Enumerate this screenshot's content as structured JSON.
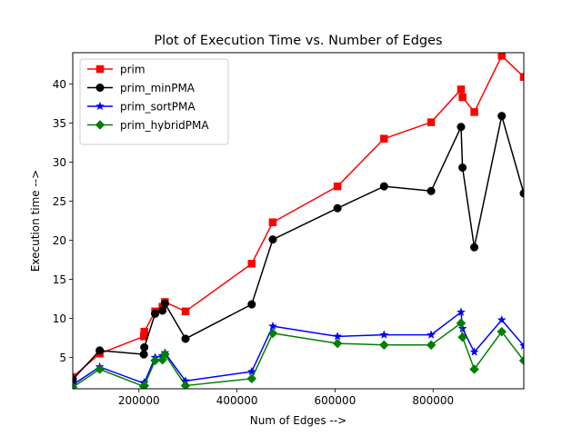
{
  "chart_data": {
    "type": "line",
    "title": "Plot of Execution Time vs. Number of Edges",
    "xlabel": "Num of Edges -->",
    "ylabel": "Execution time -->",
    "xlim": [
      65000,
      985000
    ],
    "ylim": [
      1,
      44
    ],
    "xticks": [
      200000,
      400000,
      600000,
      800000
    ],
    "xtick_labels": [
      "200000",
      "400000",
      "600000",
      "800000"
    ],
    "yticks": [
      5,
      10,
      15,
      20,
      25,
      30,
      35,
      40
    ],
    "ytick_labels": [
      "5",
      "10",
      "15",
      "20",
      "25",
      "30",
      "35",
      "40"
    ],
    "grid": false,
    "legend_position": "top-left",
    "x": [
      65000,
      120000,
      210000,
      211000,
      233000,
      248000,
      253000,
      295000,
      430000,
      473000,
      605000,
      700000,
      796000,
      857000,
      860000,
      884000,
      940000,
      985000
    ],
    "series": [
      {
        "name": "prim",
        "color": "#ff0000",
        "marker": "square",
        "values": [
          2.5,
          5.5,
          7.7,
          8.3,
          10.9,
          11.5,
          12.1,
          10.9,
          17.0,
          22.3,
          26.9,
          33.0,
          35.1,
          39.3,
          38.3,
          36.4,
          43.6,
          40.9
        ]
      },
      {
        "name": "prim_minPMA",
        "color": "#000000",
        "marker": "circle",
        "values": [
          2.2,
          5.9,
          5.4,
          6.3,
          10.6,
          11.0,
          11.9,
          7.4,
          11.8,
          20.1,
          24.1,
          26.9,
          26.3,
          34.5,
          29.3,
          19.1,
          35.9,
          26.0
        ]
      },
      {
        "name": "prim_sortPMA",
        "color": "#0000ff",
        "marker": "star",
        "values": [
          1.5,
          3.8,
          1.7,
          1.8,
          5.0,
          5.2,
          5.6,
          2.0,
          3.2,
          9.0,
          7.7,
          7.9,
          7.9,
          10.8,
          8.7,
          5.7,
          9.8,
          6.5
        ]
      },
      {
        "name": "prim_hybridPMA",
        "color": "#008000",
        "marker": "diamond",
        "values": [
          1.2,
          3.5,
          1.3,
          1.4,
          4.6,
          4.7,
          5.4,
          1.4,
          2.3,
          8.1,
          6.8,
          6.6,
          6.6,
          9.4,
          7.6,
          3.5,
          8.3,
          4.6
        ]
      }
    ]
  }
}
